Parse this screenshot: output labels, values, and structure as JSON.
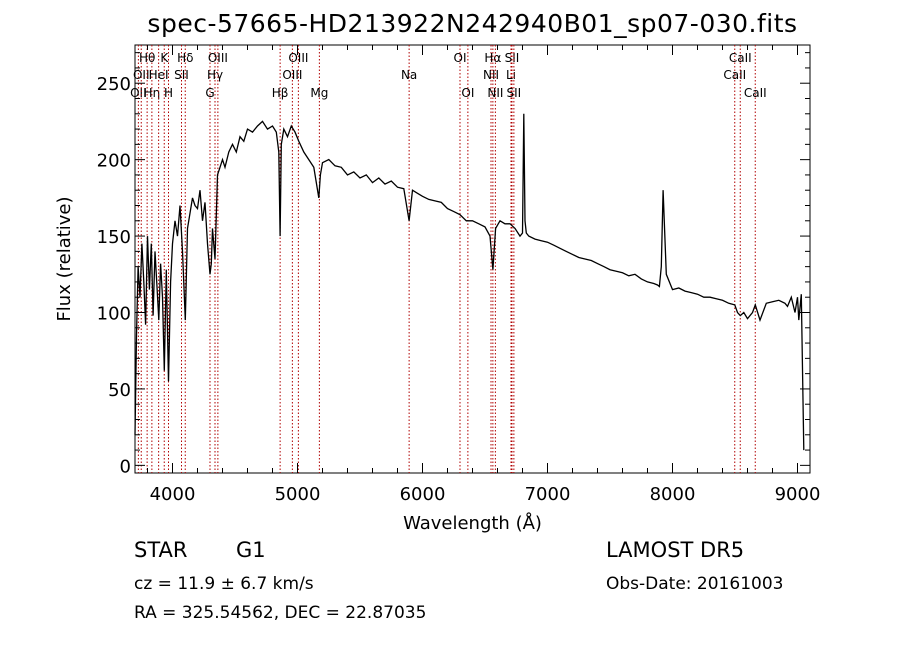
{
  "title": "spec-57665-HD213922N242940B01_sp07-030.fits",
  "info": {
    "obj_class": "STAR",
    "obj_subclass": "G1",
    "survey": "LAMOST DR5",
    "cz": "cz = 11.9 ± 6.7 km/s",
    "obs_date": "Obs-Date: 20161003",
    "radec": "RA = 325.54562, DEC =  22.87035"
  },
  "chart_data": {
    "type": "line",
    "xlabel": "Wavelength (Å)",
    "ylabel": "Flux (relative)",
    "xlim": [
      3700,
      9100
    ],
    "ylim": [
      -5,
      275
    ],
    "x_ticks": [
      4000,
      5000,
      6000,
      7000,
      8000,
      9000
    ],
    "x_tick_labels": [
      "4000",
      "5000",
      "6000",
      "7000",
      "8000",
      "9000"
    ],
    "y_ticks": [
      0,
      50,
      100,
      150,
      200,
      250
    ],
    "y_tick_labels": [
      "0",
      "50",
      "100",
      "150",
      "200",
      "250"
    ],
    "grid": false,
    "legend": "none",
    "series_color": "#000000",
    "line_marker_color": "#b00000",
    "series": [
      {
        "x": [
          3700,
          3712,
          3725,
          3740,
          3755,
          3770,
          3785,
          3800,
          3815,
          3830,
          3845,
          3860,
          3875,
          3890,
          3905,
          3920,
          3934,
          3950,
          3968,
          3985,
          4000,
          4020,
          4040,
          4060,
          4080,
          4102,
          4120,
          4140,
          4160,
          4180,
          4200,
          4220,
          4240,
          4260,
          4280,
          4300,
          4310,
          4320,
          4340,
          4360,
          4380,
          4400,
          4420,
          4450,
          4480,
          4510,
          4540,
          4570,
          4600,
          4640,
          4680,
          4720,
          4760,
          4800,
          4830,
          4850,
          4861,
          4870,
          4890,
          4920,
          4950,
          4980,
          5010,
          5050,
          5090,
          5130,
          5170,
          5183,
          5200,
          5250,
          5300,
          5350,
          5400,
          5450,
          5500,
          5550,
          5600,
          5650,
          5700,
          5750,
          5800,
          5850,
          5893,
          5920,
          5960,
          6000,
          6050,
          6100,
          6150,
          6200,
          6250,
          6300,
          6350,
          6400,
          6450,
          6500,
          6540,
          6563,
          6585,
          6620,
          6660,
          6700,
          6740,
          6780,
          6800,
          6810,
          6820,
          6830,
          6850,
          6900,
          6950,
          7000,
          7050,
          7100,
          7150,
          7200,
          7250,
          7300,
          7350,
          7400,
          7450,
          7500,
          7550,
          7600,
          7650,
          7700,
          7750,
          7800,
          7850,
          7880,
          7895,
          7910,
          7925,
          7950,
          8000,
          8050,
          8100,
          8150,
          8200,
          8250,
          8300,
          8350,
          8400,
          8450,
          8498,
          8520,
          8542,
          8570,
          8600,
          8640,
          8662,
          8700,
          8750,
          8800,
          8850,
          8900,
          8920,
          8950,
          8980,
          9000,
          9010,
          9030,
          9050
        ],
        "y": [
          20,
          85,
          130,
          110,
          145,
          120,
          92,
          150,
          115,
          145,
          98,
          140,
          118,
          95,
          132,
          110,
          62,
          128,
          55,
          120,
          145,
          160,
          150,
          170,
          140,
          95,
          155,
          165,
          175,
          170,
          168,
          180,
          160,
          172,
          145,
          125,
          132,
          155,
          135,
          190,
          195,
          200,
          195,
          205,
          210,
          205,
          215,
          212,
          220,
          218,
          222,
          225,
          220,
          222,
          218,
          205,
          150,
          210,
          220,
          215,
          222,
          218,
          212,
          205,
          200,
          195,
          175,
          190,
          198,
          200,
          196,
          195,
          190,
          192,
          188,
          190,
          185,
          188,
          184,
          186,
          182,
          181,
          160,
          180,
          178,
          176,
          174,
          173,
          172,
          168,
          166,
          164,
          160,
          160,
          158,
          156,
          150,
          128,
          155,
          160,
          158,
          158,
          155,
          150,
          152,
          230,
          160,
          152,
          150,
          148,
          147,
          146,
          144,
          142,
          140,
          138,
          136,
          135,
          134,
          132,
          130,
          128,
          127,
          126,
          124,
          125,
          122,
          120,
          119,
          118,
          117,
          130,
          180,
          125,
          115,
          116,
          114,
          113,
          112,
          110,
          110,
          109,
          108,
          106,
          105,
          100,
          98,
          100,
          96,
          100,
          105,
          95,
          106,
          107,
          108,
          106,
          104,
          110,
          100,
          110,
          95,
          112,
          10
        ]
      }
    ],
    "lines": [
      {
        "wave": 3727,
        "label": "OII",
        "row": 2
      },
      {
        "wave": 3750,
        "label": "OII",
        "row": 1
      },
      {
        "wave": 3797,
        "label": "Hθ",
        "row": 0
      },
      {
        "wave": 3835,
        "label": "Hη",
        "row": 2
      },
      {
        "wave": 3889,
        "label": "HeI",
        "row": 1
      },
      {
        "wave": 3934,
        "label": "K",
        "row": 0
      },
      {
        "wave": 3968,
        "label": "H",
        "row": 2
      },
      {
        "wave": 4072,
        "label": "SII",
        "row": 1
      },
      {
        "wave": 4102,
        "label": "Hδ",
        "row": 0
      },
      {
        "wave": 4300,
        "label": "G",
        "row": 2
      },
      {
        "wave": 4340,
        "label": "Hγ",
        "row": 1
      },
      {
        "wave": 4363,
        "label": "OIII",
        "row": 0
      },
      {
        "wave": 4861,
        "label": "Hβ",
        "row": 2
      },
      {
        "wave": 4959,
        "label": "OIII",
        "row": 1
      },
      {
        "wave": 5007,
        "label": "OIII",
        "row": 0
      },
      {
        "wave": 5175,
        "label": "Mg",
        "row": 2
      },
      {
        "wave": 5893,
        "label": "Na",
        "row": 1
      },
      {
        "wave": 6300,
        "label": "OI",
        "row": 0
      },
      {
        "wave": 6363,
        "label": "OI",
        "row": 2
      },
      {
        "wave": 6548,
        "label": "NII",
        "row": 1
      },
      {
        "wave": 6563,
        "label": "Hα",
        "row": 0
      },
      {
        "wave": 6583,
        "label": "NII",
        "row": 2
      },
      {
        "wave": 6708,
        "label": "Li",
        "row": 1
      },
      {
        "wave": 6716,
        "label": "SII",
        "row": 0
      },
      {
        "wave": 6731,
        "label": "SII",
        "row": 2
      },
      {
        "wave": 8498,
        "label": "CaII",
        "row": 1
      },
      {
        "wave": 8542,
        "label": "CaII",
        "row": 0
      },
      {
        "wave": 8662,
        "label": "CaII",
        "row": 2
      }
    ]
  }
}
